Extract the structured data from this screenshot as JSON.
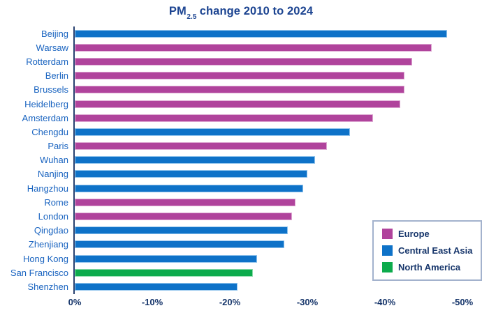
{
  "title": {
    "prefix": "PM",
    "subscript": "2.5",
    "suffix": " change 2010 to 2024"
  },
  "region_colors": {
    "Europe": "#b0439c",
    "Central East Asia": "#0e72c8",
    "North America": "#0cab4c"
  },
  "region_border_colors": {
    "Europe": "#dda8d2",
    "Central East Asia": "#90c3ec",
    "North America": "#8bdcaa"
  },
  "ui_colors": {
    "title_text": "#1c4491",
    "category_text": "#1a64c0",
    "tick_text": "#17366b",
    "axis_line": "#27406f",
    "legend_border": "#a3b2cd"
  },
  "chart_data": {
    "type": "bar",
    "orientation": "horizontal",
    "title": "PM2.5 change 2010 to 2024",
    "xlabel": "",
    "ylabel": "",
    "xlim": [
      0,
      -50
    ],
    "grid": false,
    "x_ticks": [
      "0%",
      "-10%",
      "-20%",
      "-30%",
      "-40%",
      "-50%"
    ],
    "categories": [
      "Beijing",
      "Warsaw",
      "Rotterdam",
      "Berlin",
      "Brussels",
      "Heidelberg",
      "Amsterdam",
      "Chengdu",
      "Paris",
      "Wuhan",
      "Nanjing",
      "Hangzhou",
      "Rome",
      "London",
      "Qingdao",
      "Zhenjiang",
      "Hong Kong",
      "San Francisco",
      "Shenzhen"
    ],
    "values": [
      -48,
      -46,
      -43.5,
      -42.5,
      -42.5,
      -42,
      -38.5,
      -35.5,
      -32.5,
      -31,
      -30,
      -29.5,
      -28.5,
      -28,
      -27.5,
      -27,
      -23.5,
      -23,
      -21
    ],
    "region_by_city": [
      "Central East Asia",
      "Europe",
      "Europe",
      "Europe",
      "Europe",
      "Europe",
      "Europe",
      "Central East Asia",
      "Europe",
      "Central East Asia",
      "Central East Asia",
      "Central East Asia",
      "Europe",
      "Europe",
      "Central East Asia",
      "Central East Asia",
      "Central East Asia",
      "North America",
      "Central East Asia"
    ],
    "legend": {
      "position": "bottom-right",
      "entries": [
        "Europe",
        "Central East Asia",
        "North America"
      ]
    }
  }
}
